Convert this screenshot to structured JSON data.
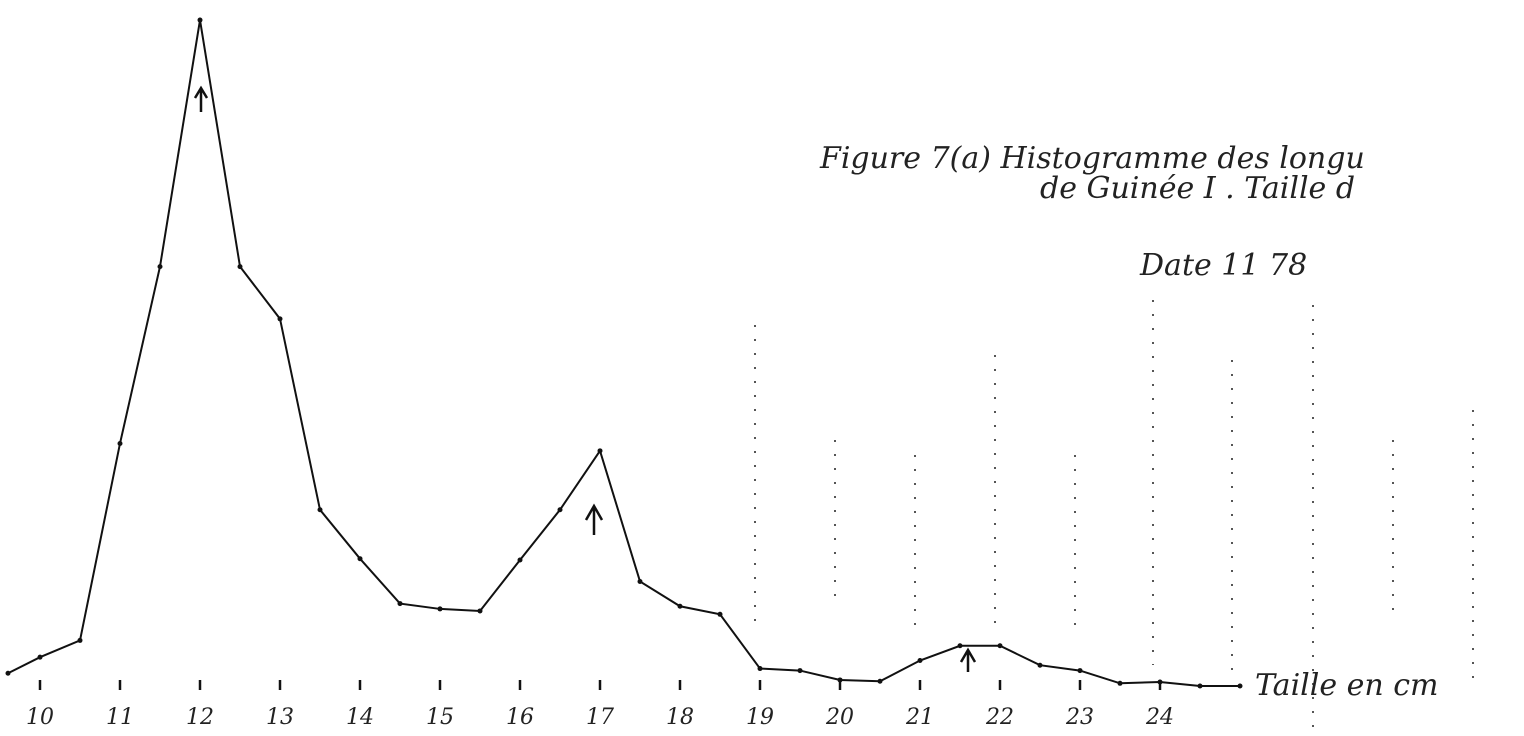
{
  "chart_data": {
    "type": "line",
    "title": [
      "Figure 7(a) Histogramme des longu",
      "de Guinée I . Taille d"
    ],
    "date_label": "Date 11 78",
    "x_label": "Taille en cm",
    "x": [
      9.6,
      10,
      10.5,
      11,
      11.5,
      12,
      12.5,
      13,
      13.5,
      14,
      14.5,
      15,
      15.5,
      16,
      16.5,
      17,
      17.5,
      18,
      18.5,
      19,
      19.5,
      20,
      20.5,
      21,
      21.5,
      22,
      22.5,
      23,
      23.5,
      24,
      24.5,
      25
    ],
    "series": [
      {
        "color": "#111111",
        "values": [
          2.5,
          4.9,
          7.4,
          36.8,
          63.2,
          100,
          63.2,
          55.4,
          26.9,
          19.6,
          12.9,
          12.1,
          11.8,
          19.4,
          26.9,
          35.7,
          16.2,
          12.5,
          11.3,
          3.2,
          2.9,
          1.5,
          1.3,
          4.4,
          6.6,
          6.6,
          3.7,
          2.9,
          1.0,
          1.2,
          0.6,
          0.6
        ]
      }
    ],
    "xlim": [
      9.5,
      26
    ],
    "ylim": [
      0,
      101.5
    ],
    "xticks": [
      10,
      11,
      12,
      13,
      14,
      15,
      16,
      17,
      18,
      19,
      20,
      21,
      22,
      23,
      24
    ]
  }
}
